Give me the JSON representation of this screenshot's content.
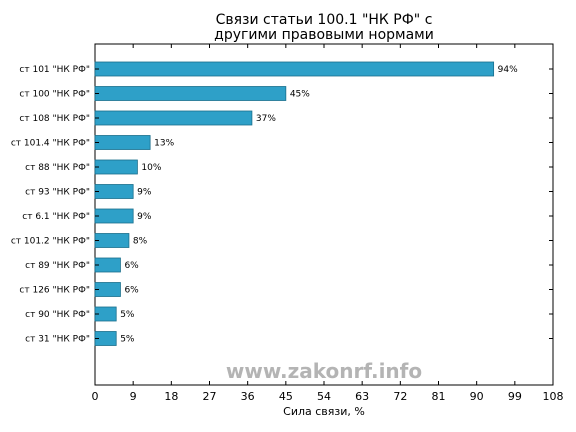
{
  "chart_data": {
    "type": "bar",
    "orientation": "horizontal",
    "title_lines": [
      "Связи статьи 100.1 \"НК РФ\" с",
      "другими правовыми нормами"
    ],
    "xlabel": "Сила связи, %",
    "ylabel": "",
    "xlim": [
      0,
      108
    ],
    "xticks": [
      0,
      9,
      18,
      27,
      36,
      45,
      54,
      63,
      72,
      81,
      90,
      99,
      108
    ],
    "categories": [
      "ст 101 \"НК РФ\"",
      "ст 100 \"НК РФ\"",
      "ст 108 \"НК РФ\"",
      "ст 101.4 \"НК РФ\"",
      "ст 88 \"НК РФ\"",
      "ст 93 \"НК РФ\"",
      "ст 6.1 \"НК РФ\"",
      "ст 101.2 \"НК РФ\"",
      "ст 89 \"НК РФ\"",
      "ст 126 \"НК РФ\"",
      "ст 90 \"НК РФ\"",
      "ст 31 \"НК РФ\""
    ],
    "values": [
      94,
      45,
      37,
      13,
      10,
      9,
      9,
      8,
      6,
      6,
      5,
      5
    ],
    "data_labels": [
      "94%",
      "45%",
      "37%",
      "13%",
      "10%",
      "9%",
      "9%",
      "8%",
      "6%",
      "6%",
      "5%",
      "5%"
    ],
    "bar_color": "#2ea0c8",
    "bar_edge_color": "#1a6f8c",
    "grid": false,
    "legend": "none"
  },
  "watermark": "www.zakonrf.info"
}
